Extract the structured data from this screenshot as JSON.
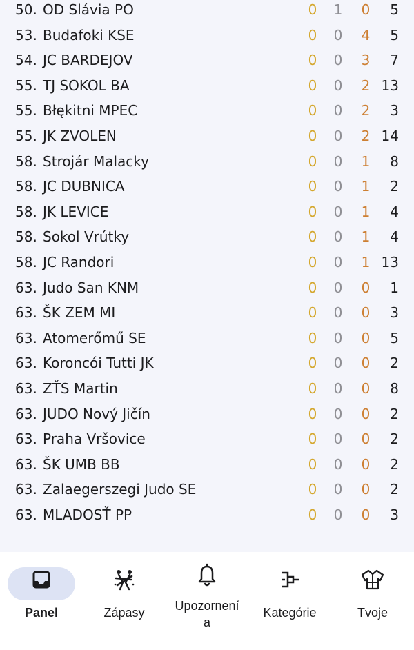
{
  "standings": [
    {
      "rank": "50.",
      "club": "OD Slávia PO",
      "gold": "0",
      "silver": "1",
      "bronze": "0",
      "total": "5"
    },
    {
      "rank": "53.",
      "club": "Budafoki KSE",
      "gold": "0",
      "silver": "0",
      "bronze": "4",
      "total": "5"
    },
    {
      "rank": "54.",
      "club": "JC BARDEJOV",
      "gold": "0",
      "silver": "0",
      "bronze": "3",
      "total": "7"
    },
    {
      "rank": "55.",
      "club": "TJ SOKOL BA",
      "gold": "0",
      "silver": "0",
      "bronze": "2",
      "total": "13"
    },
    {
      "rank": "55.",
      "club": "Błękitni MPEC",
      "gold": "0",
      "silver": "0",
      "bronze": "2",
      "total": "3"
    },
    {
      "rank": "55.",
      "club": "JK ZVOLEN",
      "gold": "0",
      "silver": "0",
      "bronze": "2",
      "total": "14"
    },
    {
      "rank": "58.",
      "club": "Strojár Malacky",
      "gold": "0",
      "silver": "0",
      "bronze": "1",
      "total": "8"
    },
    {
      "rank": "58.",
      "club": "JC DUBNICA",
      "gold": "0",
      "silver": "0",
      "bronze": "1",
      "total": "2"
    },
    {
      "rank": "58.",
      "club": "JK LEVICE",
      "gold": "0",
      "silver": "0",
      "bronze": "1",
      "total": "4"
    },
    {
      "rank": "58.",
      "club": "Sokol Vrútky",
      "gold": "0",
      "silver": "0",
      "bronze": "1",
      "total": "4"
    },
    {
      "rank": "58.",
      "club": "JC Randori",
      "gold": "0",
      "silver": "0",
      "bronze": "1",
      "total": "13"
    },
    {
      "rank": "63.",
      "club": "Judo San KNM",
      "gold": "0",
      "silver": "0",
      "bronze": "0",
      "total": "1"
    },
    {
      "rank": "63.",
      "club": "ŠK ZEM MI",
      "gold": "0",
      "silver": "0",
      "bronze": "0",
      "total": "3"
    },
    {
      "rank": "63.",
      "club": "Atomerőmű SE",
      "gold": "0",
      "silver": "0",
      "bronze": "0",
      "total": "5"
    },
    {
      "rank": "63.",
      "club": "Koroncói Tutti JK",
      "gold": "0",
      "silver": "0",
      "bronze": "0",
      "total": "2"
    },
    {
      "rank": "63.",
      "club": "ZŤS Martin",
      "gold": "0",
      "silver": "0",
      "bronze": "0",
      "total": "8"
    },
    {
      "rank": "63.",
      "club": "JUDO Nový Jičín",
      "gold": "0",
      "silver": "0",
      "bronze": "0",
      "total": "2"
    },
    {
      "rank": "63.",
      "club": "Praha Vršovice",
      "gold": "0",
      "silver": "0",
      "bronze": "0",
      "total": "2"
    },
    {
      "rank": "63.",
      "club": "ŠK UMB BB",
      "gold": "0",
      "silver": "0",
      "bronze": "0",
      "total": "2"
    },
    {
      "rank": "63.",
      "club": "Zalaegerszegi Judo SE",
      "gold": "0",
      "silver": "0",
      "bronze": "0",
      "total": "2"
    },
    {
      "rank": "63.",
      "club": "MLADOSŤ PP",
      "gold": "0",
      "silver": "0",
      "bronze": "0",
      "total": "3"
    }
  ],
  "colors": {
    "gold": "#d4a72c",
    "silver": "#8e8e93",
    "bronze": "#cd7f32",
    "active_tab_pill": "#dde3f4",
    "background": "#f4f5fb"
  },
  "tabbar": {
    "panel": {
      "label": "Panel",
      "icon": "inbox-icon",
      "active": true
    },
    "zapasy": {
      "label": "Zápasy",
      "icon": "judo-match-icon"
    },
    "upozornenia": {
      "label_line1": "Upozornení",
      "label_line2": "a",
      "icon": "bell-icon"
    },
    "kategorie": {
      "label": "Kategórie",
      "icon": "bracket-icon"
    },
    "tvoje": {
      "label": "Tvoje",
      "icon": "judogi-icon"
    }
  }
}
